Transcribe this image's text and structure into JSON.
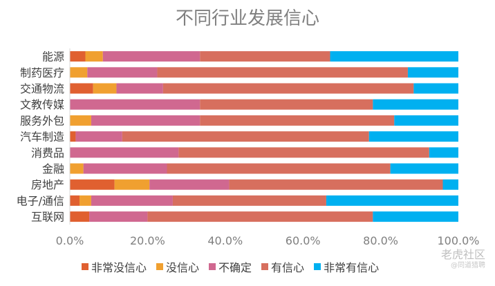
{
  "chart_data": {
    "type": "bar",
    "orientation": "horizontal",
    "stacked": true,
    "title": "不同行业发展信心",
    "categories": [
      "能源",
      "制药医疗",
      "交通物流",
      "文教传媒",
      "服务外包",
      "汽车制造",
      "消费品",
      "金融",
      "房地产",
      "电子/通信",
      "互联网"
    ],
    "series": [
      {
        "name": "非常没信心",
        "color": "#e06030",
        "values": [
          4,
          0,
          6,
          0,
          0,
          1.5,
          0,
          0,
          11.5,
          2.5,
          5
        ]
      },
      {
        "name": "没信心",
        "color": "#f0a030",
        "values": [
          4.5,
          4.5,
          6,
          0,
          5.5,
          0,
          0,
          3.5,
          9,
          3,
          0
        ]
      },
      {
        "name": "不确定",
        "color": "#d06890",
        "values": [
          25,
          18,
          12,
          33.5,
          28,
          12,
          28,
          21.5,
          20.5,
          21,
          15
        ]
      },
      {
        "name": "有信心",
        "color": "#d76f5e",
        "values": [
          33.5,
          64.5,
          64.5,
          44.5,
          50,
          63.5,
          64.5,
          57.5,
          55,
          39.5,
          58
        ]
      },
      {
        "name": "非常有信心",
        "color": "#00b0f0",
        "values": [
          33,
          13,
          11.5,
          22,
          16.5,
          23,
          7.5,
          17.5,
          4,
          34,
          22
        ]
      }
    ],
    "xlim": [
      0,
      100
    ],
    "xticks": [
      "0.0%",
      "20.0%",
      "40.0%",
      "60.0%",
      "80.0%",
      "100.0%"
    ],
    "legend_position": "bottom",
    "grid": false
  },
  "watermark": {
    "main": "老虎社区",
    "sub": "@同道猎聘"
  }
}
